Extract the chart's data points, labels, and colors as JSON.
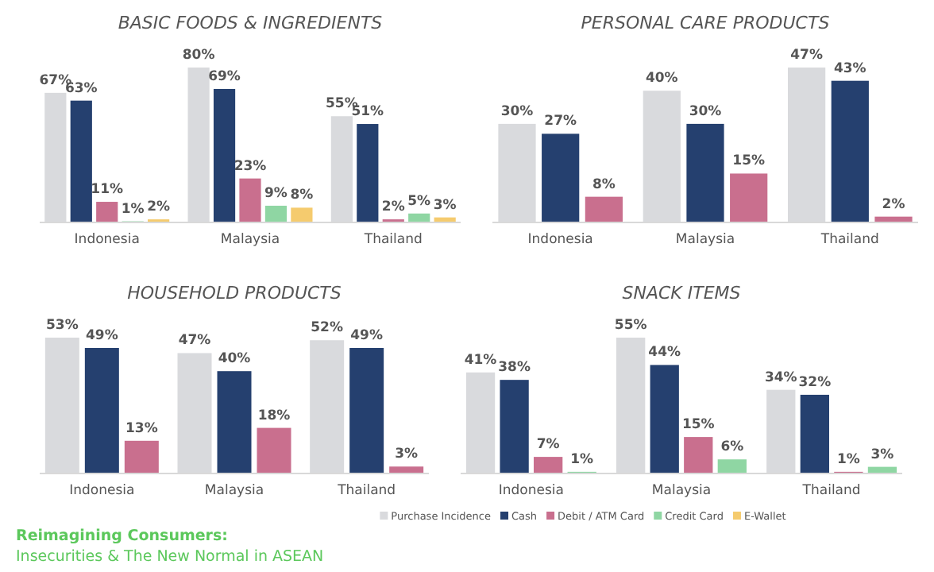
{
  "chart_data": [
    {
      "type": "bar",
      "title": "BASIC FOODS & INGREDIENTS",
      "categories": [
        "Indonesia",
        "Malaysia",
        "Thailand"
      ],
      "legend": "bottom",
      "annotations": [
        "Reimagining Consumers:",
        "Insecurities & The New Normal in ASEAN"
      ],
      "series": [
        {
          "name": "Purchase Incidence",
          "color": "#d9dadd",
          "values": [
            67,
            80,
            55
          ],
          "value_labels": [
            "67%",
            "80%",
            "55%"
          ]
        },
        {
          "name": "Cash",
          "color": "#25406f",
          "values": [
            63,
            69,
            51
          ],
          "value_labels": [
            "63%",
            "69%",
            "51%"
          ]
        },
        {
          "name": "Debit / ATM Card",
          "color": "#c96f8e",
          "values": [
            11,
            23,
            2
          ],
          "value_labels": [
            "11%",
            "23%",
            "2%"
          ]
        },
        {
          "name": "Credit Card",
          "color": "#8fd6a3",
          "values": [
            1,
            9,
            5
          ],
          "value_labels": [
            "1%",
            "9%",
            "5%"
          ]
        },
        {
          "name": "E-Wallet",
          "color": "#f5cb6e",
          "values": [
            2,
            8,
            3
          ],
          "value_labels": [
            "2%",
            "8%",
            "3%"
          ]
        }
      ]
    },
    {
      "type": "bar",
      "title": "PERSONAL CARE PRODUCTS",
      "categories": [
        "Indonesia",
        "Malaysia",
        "Thailand"
      ],
      "series": [
        {
          "color": "#d9dadd",
          "values": [
            30,
            40,
            47
          ],
          "value_labels": [
            "30%",
            "40%",
            "47%"
          ]
        },
        {
          "color": "#25406f",
          "values": [
            27,
            30,
            43
          ],
          "value_labels": [
            "27%",
            "30%",
            "43%"
          ]
        },
        {
          "color": "#c96f8e",
          "values": [
            8,
            15,
            2
          ],
          "value_labels": [
            "8%",
            "15%",
            "2%"
          ]
        }
      ]
    },
    {
      "type": "bar",
      "title": "HOUSEHOLD PRODUCTS",
      "categories": [
        "Indonesia",
        "Malaysia",
        "Thailand"
      ],
      "series": [
        {
          "color": "#d9dadd",
          "values": [
            53,
            47,
            52
          ],
          "value_labels": [
            "53%",
            "47%",
            "52%"
          ]
        },
        {
          "color": "#25406f",
          "values": [
            49,
            40,
            49
          ],
          "value_labels": [
            "49%",
            "40%",
            "49%"
          ]
        },
        {
          "color": "#c96f8e",
          "values": [
            13,
            18,
            3
          ],
          "value_labels": [
            "13%",
            "18%",
            "3%"
          ]
        }
      ]
    },
    {
      "type": "bar",
      "title": "SNACK ITEMS",
      "categories": [
        "Indonesia",
        "Malaysia",
        "Thailand"
      ],
      "series": [
        {
          "color": "#d9dadd",
          "values": [
            41,
            55,
            34
          ],
          "value_labels": [
            "41%",
            "55%",
            "34%"
          ]
        },
        {
          "color": "#25406f",
          "values": [
            38,
            44,
            32
          ],
          "value_labels": [
            "38%",
            "44%",
            "32%"
          ]
        },
        {
          "color": "#c96f8e",
          "values": [
            7,
            15,
            1
          ],
          "value_labels": [
            "7%",
            "15%",
            "1%"
          ]
        },
        {
          "color": "#8fd6a3",
          "values": [
            1,
            6,
            3
          ],
          "value_labels": [
            "1%",
            "6%",
            "3%"
          ]
        }
      ]
    }
  ]
}
